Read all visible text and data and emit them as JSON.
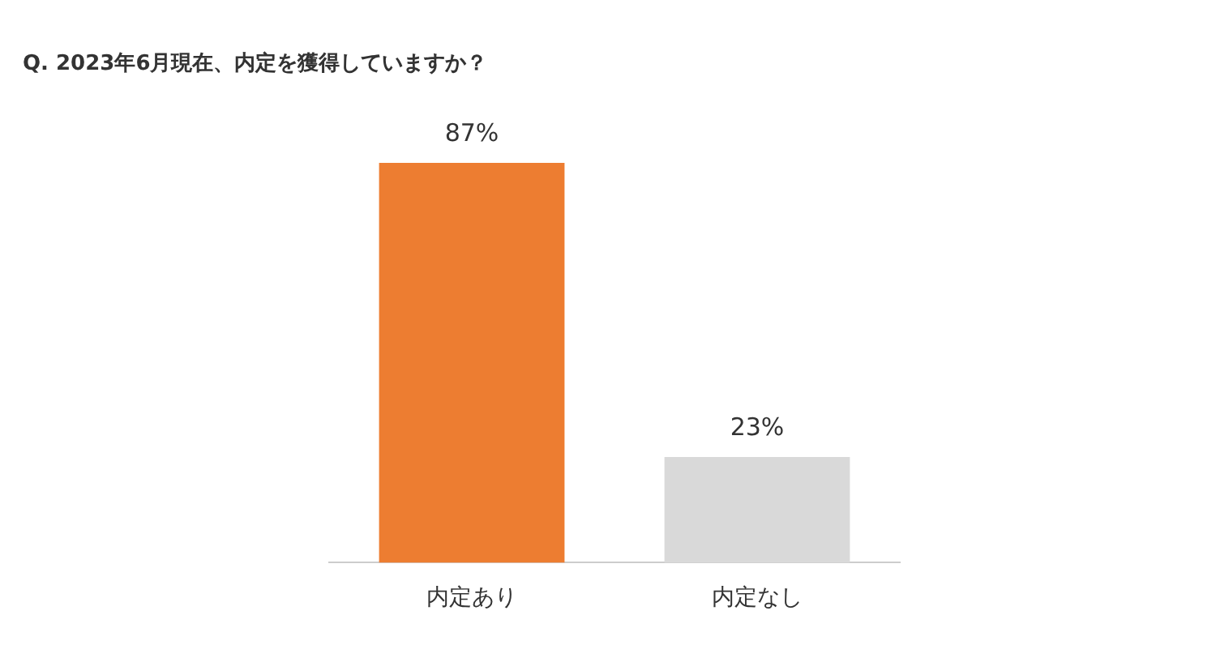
{
  "chart_data": {
    "type": "bar",
    "title": "Q. 2023年6月現在、内定を獲得していますか？",
    "categories": [
      "内定あり",
      "内定なし"
    ],
    "values": [
      87,
      23
    ],
    "colors": [
      "#ed7d31",
      "#d9d9d9"
    ],
    "data_labels": true,
    "value_labels": [
      "87%",
      "23%"
    ],
    "grid": false,
    "legend": false
  }
}
